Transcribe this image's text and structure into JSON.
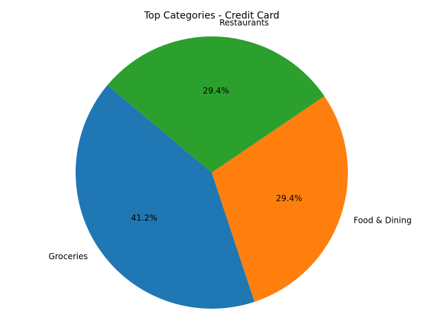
{
  "chart_data": {
    "type": "pie",
    "title": "Top Categories - Credit Card",
    "categories": [
      "Groceries",
      "Food & Dining",
      "Restaurants"
    ],
    "values": [
      41.2,
      29.4,
      29.4
    ],
    "value_labels": [
      "41.2%",
      "29.4%",
      "29.4%"
    ],
    "colors": [
      "#1f77b4",
      "#ff7f0e",
      "#2ca02c"
    ],
    "start_angle_deg": 140,
    "direction": "counterclockwise",
    "legend": "none"
  }
}
